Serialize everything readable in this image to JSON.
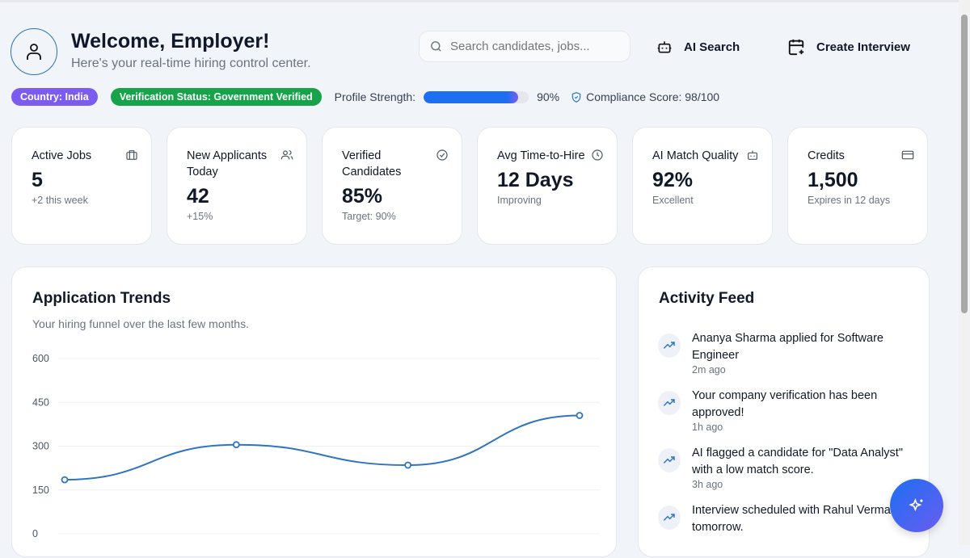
{
  "header": {
    "title": "Welcome, Employer!",
    "subtitle": "Here's your real-time hiring control center.",
    "search_placeholder": "Search candidates, jobs...",
    "ai_search": "AI Search",
    "create_interview": "Create Interview"
  },
  "status": {
    "country": "Country: India",
    "verification": "Verification Status: Government Verified",
    "profile_label": "Profile Strength:",
    "profile_value": "90%",
    "profile_pct": 90,
    "compliance": "Compliance Score: 98/100"
  },
  "colors": {
    "accent": "#1d6ff2",
    "country_badge": "#7c5cf0",
    "verified_badge": "#16a34a",
    "line": "#2f74c0"
  },
  "cards": [
    {
      "label": "Active Jobs",
      "value": "5",
      "sub": "+2 this week",
      "icon": "briefcase-icon"
    },
    {
      "label": "New Applicants Today",
      "value": "42",
      "sub": "+15%",
      "icon": "users-icon"
    },
    {
      "label": "Verified Candidates",
      "value": "85%",
      "sub": "Target: 90%",
      "icon": "check-circle-icon"
    },
    {
      "label": "Avg Time-to-Hire",
      "value": "12 Days",
      "sub": "Improving",
      "icon": "clock-icon"
    },
    {
      "label": "AI Match Quality",
      "value": "92%",
      "sub": "Excellent",
      "icon": "bot-icon"
    },
    {
      "label": "Credits",
      "value": "1,500",
      "sub": "Expires in 12 days",
      "icon": "credit-card-icon"
    }
  ],
  "trends": {
    "title": "Application Trends",
    "subtitle": "Your hiring funnel over the last few months."
  },
  "chart_data": {
    "type": "line",
    "title": "Application Trends",
    "yticks": [
      600,
      450,
      300,
      150,
      0
    ],
    "ylim": [
      0,
      600
    ],
    "grid": true,
    "values": [
      185,
      305,
      235,
      405
    ]
  },
  "feed": {
    "title": "Activity Feed",
    "items": [
      {
        "text": "Ananya Sharma applied for Software Engineer",
        "time": "2m ago"
      },
      {
        "text": "Your company verification has been approved!",
        "time": "1h ago"
      },
      {
        "text": "AI flagged a candidate for \"Data Analyst\" with a low match score.",
        "time": "3h ago"
      },
      {
        "text": "Interview scheduled with Rahul Verma for tomorrow.",
        "time": ""
      }
    ]
  }
}
